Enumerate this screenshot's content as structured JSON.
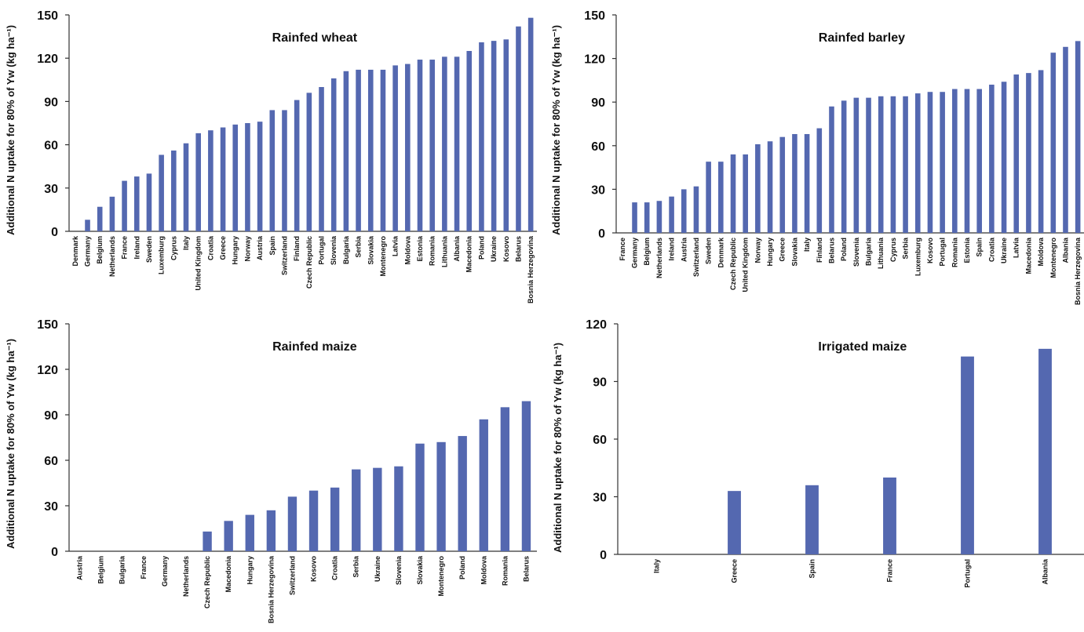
{
  "colors": {
    "bar": "#5468B0",
    "axis": "#333333",
    "text": "#111111"
  },
  "chart_data": [
    {
      "type": "bar",
      "title": "Rainfed wheat",
      "ylabel": "Additional N uptake for 80% of Yw (kg ha⁻¹)",
      "ylim": [
        0,
        150
      ],
      "yticks": [
        0,
        30,
        60,
        90,
        120,
        150
      ],
      "categories": [
        "Denmark",
        "Germany",
        "Belgium",
        "Netherlands",
        "France",
        "Ireland",
        "Sweden",
        "Luxemburg",
        "Cyprus",
        "Italy",
        "United Kingdom",
        "Croatia",
        "Greece",
        "Hungary",
        "Norway",
        "Austria",
        "Spain",
        "Switzerland",
        "Finland",
        "Czech Republic",
        "Portugal",
        "Slovenia",
        "Bulgaria",
        "Serbia",
        "Slovakia",
        "Montenegro",
        "Latvia",
        "Moldova",
        "Estonia",
        "Romania",
        "Lithuania",
        "Albania",
        "Macedonia",
        "Poland",
        "Ukraine",
        "Kosovo",
        "Belarus",
        "Bosnia Herzegovina"
      ],
      "values": [
        0,
        8,
        17,
        24,
        35,
        38,
        40,
        53,
        56,
        61,
        68,
        70,
        72,
        74,
        75,
        76,
        84,
        84,
        91,
        96,
        100,
        106,
        111,
        112,
        112,
        112,
        115,
        116,
        119,
        119,
        121,
        121,
        125,
        131,
        132,
        133,
        142,
        148
      ]
    },
    {
      "type": "bar",
      "title": "Rainfed barley",
      "ylabel": "Additional N uptake for 80% of Yw (kg ha⁻¹)",
      "ylim": [
        0,
        150
      ],
      "yticks": [
        0,
        30,
        60,
        90,
        120,
        150
      ],
      "categories": [
        "France",
        "Germany",
        "Belgium",
        "Netherlands",
        "Ireland",
        "Austria",
        "Switzerland",
        "Sweden",
        "Denmark",
        "Czech Republic",
        "United Kingdom",
        "Norway",
        "Hungary",
        "Greece",
        "Slovakia",
        "Italy",
        "Finland",
        "Belarus",
        "Poland",
        "Slovenia",
        "Bulgaria",
        "Lithuania",
        "Cyprus",
        "Serbia",
        "Luxemburg",
        "Kosovo",
        "Portugal",
        "Romania",
        "Estonia",
        "Spain",
        "Croatia",
        "Ukraine",
        "Latvia",
        "Macedonia",
        "Moldova",
        "Montenegro",
        "Albania",
        "Bosnia Herzegovina"
      ],
      "values": [
        0,
        21,
        21,
        22,
        25,
        30,
        32,
        49,
        49,
        54,
        54,
        61,
        63,
        66,
        68,
        68,
        72,
        87,
        91,
        93,
        93,
        94,
        94,
        94,
        96,
        97,
        97,
        99,
        99,
        99,
        102,
        104,
        109,
        110,
        112,
        124,
        128,
        132
      ]
    },
    {
      "type": "bar",
      "title": "Rainfed maize",
      "ylabel": "Additional N uptake for 80% of Yw (kg ha⁻¹)",
      "ylim": [
        0,
        150
      ],
      "yticks": [
        0,
        30,
        60,
        90,
        120,
        150
      ],
      "categories": [
        "Austria",
        "Belgium",
        "Bulgaria",
        "France",
        "Germany",
        "Netherlands",
        "Czech Republic",
        "Macedonia",
        "Hungary",
        "Bosnia Herzegovina",
        "Switzerland",
        "Kosovo",
        "Croatia",
        "Serbia",
        "Ukraine",
        "Slovenia",
        "Slovakia",
        "Montenegro",
        "Poland",
        "Moldova",
        "Romania",
        "Belarus"
      ],
      "values": [
        0,
        0,
        0,
        0,
        0,
        0,
        13,
        20,
        24,
        27,
        36,
        40,
        42,
        54,
        55,
        56,
        71,
        72,
        76,
        87,
        95,
        99
      ]
    },
    {
      "type": "bar",
      "title": "Irrigated maize",
      "ylabel": "Additional N uptake for 80% of Yw (kg ha⁻¹)",
      "ylim": [
        0,
        120
      ],
      "yticks": [
        0,
        30,
        60,
        90,
        120
      ],
      "categories": [
        "Italy",
        "Greece",
        "Spain",
        "France",
        "Portugal",
        "Albania"
      ],
      "values": [
        0,
        33,
        36,
        40,
        103,
        107
      ]
    }
  ]
}
